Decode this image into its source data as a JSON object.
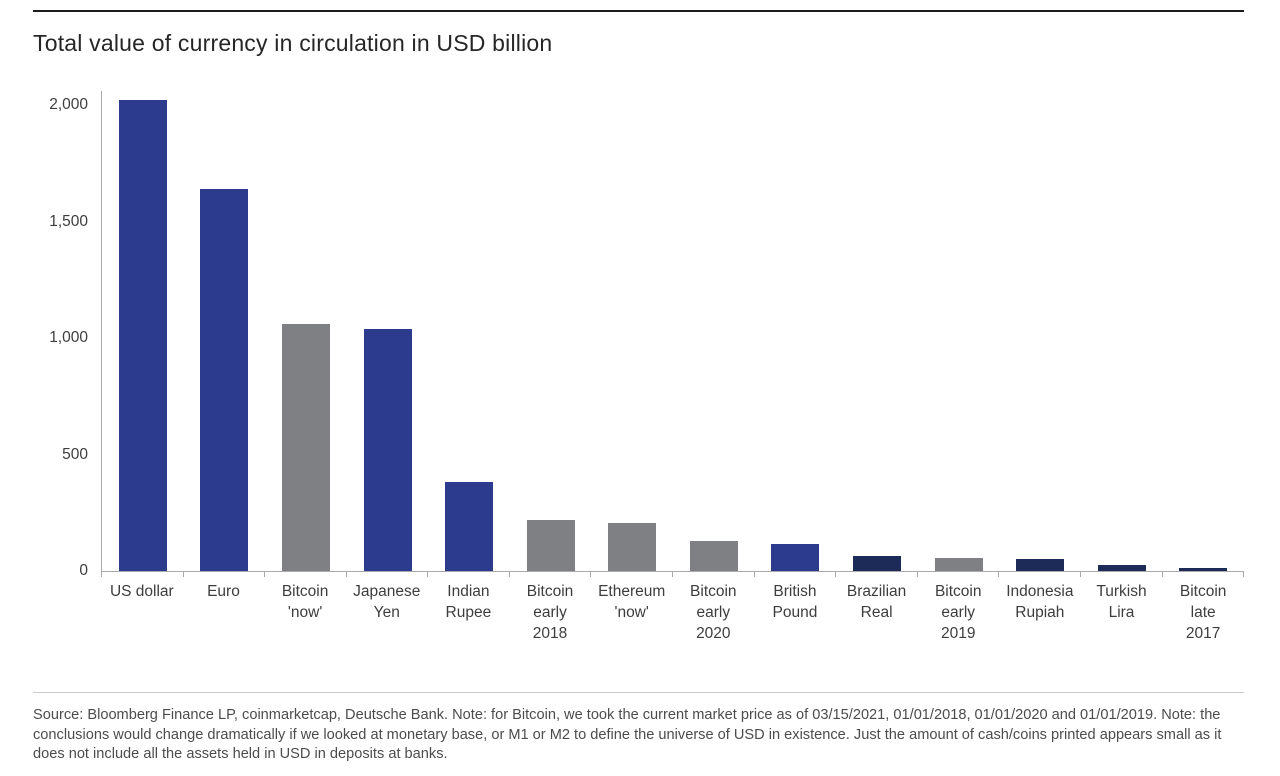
{
  "page": {
    "title": "Total value of currency in circulation in USD billion",
    "source_note": "Source: Bloomberg Finance LP, coinmarketcap, Deutsche Bank. Note: for Bitcoin, we took the current market price as of 03/15/2021, 01/01/2018, 01/01/2020 and 01/01/2019. Note: the conclusions would change dramatically if we looked at monetary base, or M1 or M2 to define the universe of USD in existence. Just the amount of cash/coins printed appears small as it does not include all the assets held in USD in deposits at banks."
  },
  "colors": {
    "fiat_blue": "#2C3B8E",
    "crypto_gray": "#7F8084",
    "fiat_navy": "#1C2B57",
    "axis_line": "#a9a9a9",
    "text": "#3d3d3d"
  },
  "chart_data": {
    "type": "bar",
    "title": "Total value of currency in circulation in USD billion",
    "xlabel": "",
    "ylabel": "USD billion",
    "ylim": [
      0,
      2060
    ],
    "grid": false,
    "legend": "none",
    "categories": [
      [
        "US dollar"
      ],
      [
        "Euro"
      ],
      [
        "Bitcoin",
        "'now'"
      ],
      [
        "Japanese",
        "Yen"
      ],
      [
        "Indian",
        "Rupee"
      ],
      [
        "Bitcoin",
        "early",
        "2018"
      ],
      [
        "Ethereum",
        "'now'"
      ],
      [
        "Bitcoin",
        "early",
        "2020"
      ],
      [
        "British",
        "Pound"
      ],
      [
        "Brazilian",
        "Real"
      ],
      [
        "Bitcoin",
        "early",
        "2019"
      ],
      [
        "Indonesia",
        "Rupiah"
      ],
      [
        "Turkish",
        "Lira"
      ],
      [
        "Bitcoin",
        "late",
        "2017"
      ]
    ],
    "values": [
      2020,
      1640,
      1060,
      1040,
      380,
      220,
      205,
      130,
      115,
      63,
      57,
      52,
      26,
      13
    ],
    "bar_colors": [
      "fiat_blue",
      "fiat_blue",
      "crypto_gray",
      "fiat_blue",
      "fiat_blue",
      "crypto_gray",
      "crypto_gray",
      "crypto_gray",
      "fiat_blue",
      "fiat_navy",
      "crypto_gray",
      "fiat_navy",
      "fiat_navy",
      "fiat_navy"
    ],
    "yticks": [
      {
        "value": 0,
        "label": "0"
      },
      {
        "value": 500,
        "label": "500"
      },
      {
        "value": 1000,
        "label": "1,000"
      },
      {
        "value": 1500,
        "label": "1,500"
      },
      {
        "value": 2000,
        "label": "2,000"
      }
    ]
  }
}
